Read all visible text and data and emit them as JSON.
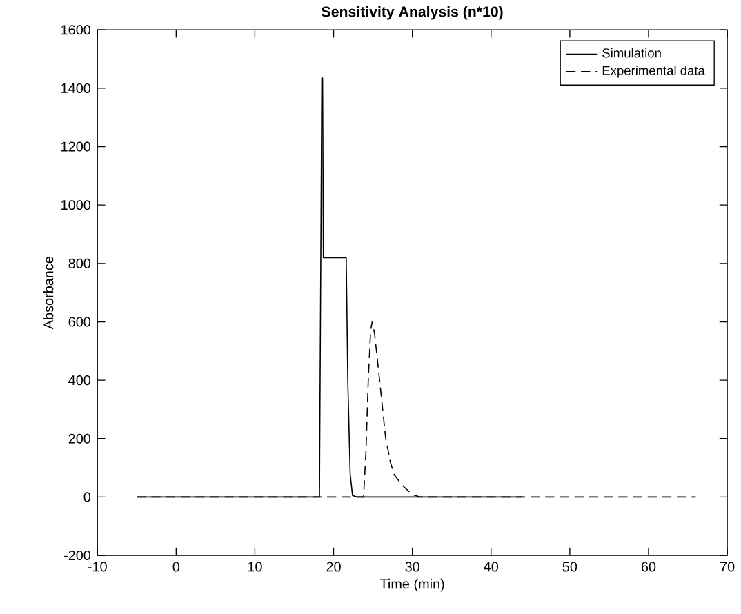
{
  "chart_data": {
    "type": "line",
    "title": "Sensitivity Analysis (n*10)",
    "xlabel": "Time (min)",
    "ylabel": "Absorbance",
    "xlim": [
      -10,
      70
    ],
    "xticks": [
      -10,
      0,
      10,
      20,
      30,
      40,
      50,
      60,
      70
    ],
    "ylim": [
      -200,
      1600
    ],
    "yticks": [
      -200,
      0,
      200,
      400,
      600,
      800,
      1000,
      1200,
      1400,
      1600
    ],
    "legend": "top right",
    "grid": false,
    "series": [
      {
        "name": "Simulation",
        "color": "#000000",
        "line_style": "solid",
        "x": [
          -5,
          18.2,
          18.5,
          18.6,
          18.7,
          21.6,
          21.8,
          22.1,
          22.4,
          23,
          44
        ],
        "values": [
          0,
          0,
          1435,
          1435,
          820,
          820,
          400,
          80,
          5,
          0,
          0
        ]
      },
      {
        "name": "Experimental data",
        "color": "#000000",
        "line_style": "dashed",
        "x": [
          -5,
          23.8,
          24.1,
          24.4,
          24.7,
          24.9,
          25.2,
          25.6,
          26,
          26.6,
          27.2,
          27.7,
          28.8,
          30,
          31,
          66
        ],
        "values": [
          0,
          0,
          150,
          400,
          570,
          600,
          560,
          460,
          360,
          204,
          120,
          76,
          38,
          8,
          0,
          0
        ]
      }
    ]
  }
}
